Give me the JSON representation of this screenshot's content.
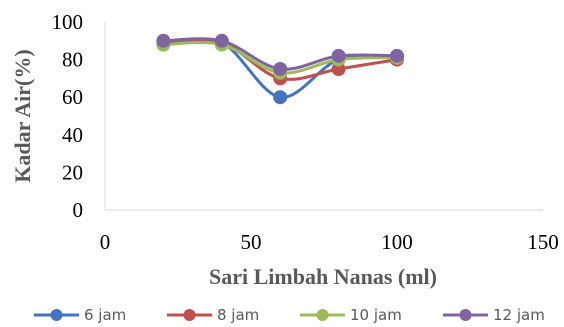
{
  "chart_data": {
    "type": "line",
    "xlabel": "Sari Limbah Nanas (ml)",
    "ylabel": "Kadar Air(%)",
    "xlim": [
      0,
      150
    ],
    "ylim": [
      0,
      100
    ],
    "x_ticks": [
      0,
      50,
      100,
      150
    ],
    "y_ticks": [
      0,
      20,
      40,
      60,
      80,
      100
    ],
    "x_tick_labels": [
      "0",
      "50",
      "100",
      "150"
    ],
    "y_tick_labels": [
      "0",
      "20",
      "40",
      "60",
      "80",
      "100"
    ],
    "grid": false,
    "legend_position": "bottom",
    "series": [
      {
        "name": "6 jam",
        "color": "#4472C4",
        "x": [
          20,
          40,
          60,
          80,
          100
        ],
        "y": [
          88,
          89,
          60,
          80,
          81
        ]
      },
      {
        "name": "8 jam",
        "color": "#C0504D",
        "x": [
          20,
          40,
          60,
          80,
          100
        ],
        "y": [
          89,
          89,
          70,
          75,
          80
        ]
      },
      {
        "name": "10 jam",
        "color": "#9BBB59",
        "x": [
          20,
          40,
          60,
          80,
          100
        ],
        "y": [
          88,
          88,
          73,
          80,
          81
        ]
      },
      {
        "name": "12 jam",
        "color": "#8064A2",
        "x": [
          20,
          40,
          60,
          80,
          100
        ],
        "y": [
          90,
          90,
          75,
          82,
          82
        ]
      }
    ]
  }
}
